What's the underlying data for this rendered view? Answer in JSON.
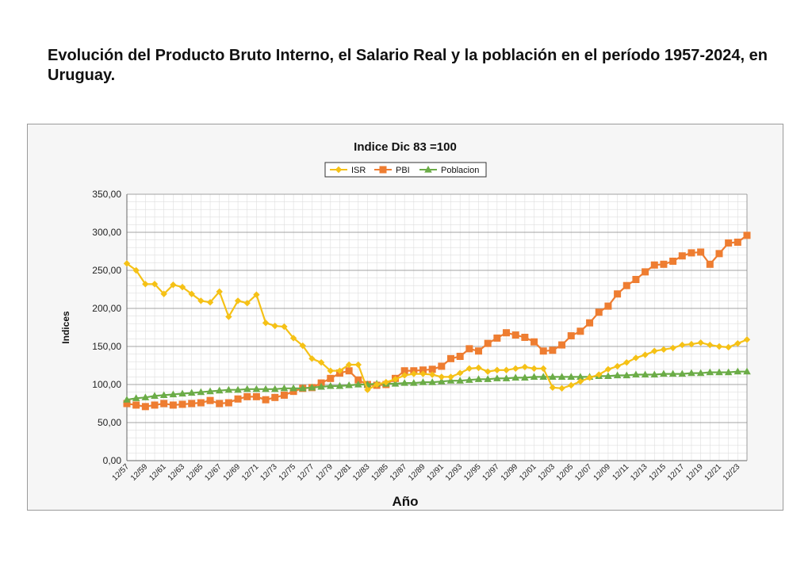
{
  "page": {
    "title": "Evolución del Producto Bruto Interno, el Salario Real y la población en el período 1957-2024, en Uruguay."
  },
  "chart_data": {
    "type": "line",
    "title": "Indice Dic 83 =100",
    "xlabel": "Año",
    "ylabel": "Indices",
    "ylim": [
      0,
      350
    ],
    "y_ticks": [
      "0,00",
      "50,00",
      "100,00",
      "150,00",
      "200,00",
      "250,00",
      "300,00",
      "350,00"
    ],
    "y_tick_values": [
      0,
      50,
      100,
      150,
      200,
      250,
      300,
      350
    ],
    "grid": true,
    "legend_position": "top-center",
    "x_tick_labels": [
      "12/57",
      "12/59",
      "12/61",
      "12/63",
      "12/65",
      "12/67",
      "12/69",
      "12/71",
      "12/73",
      "12/75",
      "12/77",
      "12/79",
      "12/81",
      "12/83",
      "12/85",
      "12/87",
      "12/89",
      "12/91",
      "12/93",
      "12/95",
      "12/97",
      "12/99",
      "12/01",
      "12/03",
      "12/05",
      "12/07",
      "12/09",
      "12/11",
      "12/13",
      "12/15",
      "12/17",
      "12/19",
      "12/21",
      "12/23"
    ],
    "x": [
      1957,
      1958,
      1959,
      1960,
      1961,
      1962,
      1963,
      1964,
      1965,
      1966,
      1967,
      1968,
      1969,
      1970,
      1971,
      1972,
      1973,
      1974,
      1975,
      1976,
      1977,
      1978,
      1979,
      1980,
      1981,
      1982,
      1983,
      1984,
      1985,
      1986,
      1987,
      1988,
      1989,
      1990,
      1991,
      1992,
      1993,
      1994,
      1995,
      1996,
      1997,
      1998,
      1999,
      2000,
      2001,
      2002,
      2003,
      2004,
      2005,
      2006,
      2007,
      2008,
      2009,
      2010,
      2011,
      2012,
      2013,
      2014,
      2015,
      2016,
      2017,
      2018,
      2019,
      2020,
      2021,
      2022,
      2023,
      2024
    ],
    "series": [
      {
        "name": "ISR",
        "color": "#f5c116",
        "marker": "diamond",
        "values": [
          259,
          250,
          232,
          232,
          219,
          231,
          228,
          219,
          210,
          208,
          222,
          189,
          210,
          207,
          218,
          181,
          177,
          176,
          161,
          151,
          134,
          129,
          118,
          118,
          126,
          126,
          93,
          100,
          103,
          107,
          112,
          114,
          114,
          113,
          110,
          110,
          115,
          121,
          122,
          117,
          119,
          119,
          121,
          123,
          121,
          121,
          96,
          95,
          99,
          104,
          109,
          113,
          120,
          124,
          129,
          135,
          139,
          144,
          146,
          148,
          152,
          153,
          155,
          152,
          150,
          149,
          154,
          159
        ]
      },
      {
        "name": "PBI",
        "color": "#ee7d31",
        "marker": "square",
        "values": [
          75,
          73,
          71,
          73,
          75,
          73,
          74,
          75,
          76,
          79,
          75,
          76,
          81,
          84,
          84,
          80,
          83,
          86,
          91,
          95,
          96,
          102,
          108,
          115,
          118,
          106,
          100,
          99,
          100,
          108,
          118,
          118,
          119,
          120,
          124,
          134,
          137,
          147,
          144,
          154,
          161,
          168,
          165,
          162,
          156,
          144,
          145,
          152,
          164,
          170,
          181,
          195,
          203,
          219,
          230,
          238,
          248,
          257,
          258,
          262,
          269,
          273,
          274,
          258,
          272,
          286,
          287,
          296
        ]
      },
      {
        "name": "Poblacion",
        "color": "#6bac47",
        "marker": "triangle",
        "values": [
          80,
          82,
          83,
          85,
          86,
          87,
          88,
          89,
          90,
          91,
          92,
          93,
          93,
          94,
          94,
          94,
          94,
          95,
          95,
          95,
          96,
          97,
          98,
          98,
          99,
          100,
          100,
          101,
          101,
          101,
          102,
          102,
          103,
          103,
          104,
          105,
          105,
          106,
          107,
          107,
          108,
          108,
          109,
          109,
          110,
          110,
          110,
          110,
          110,
          110,
          110,
          111,
          111,
          112,
          112,
          113,
          113,
          113,
          114,
          114,
          114,
          115,
          115,
          116,
          116,
          116,
          117,
          117
        ]
      }
    ]
  }
}
